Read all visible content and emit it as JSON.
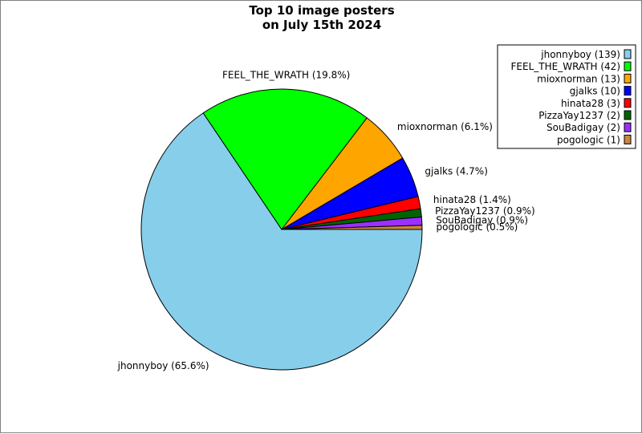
{
  "chart_data": {
    "type": "pie",
    "title_lines": [
      "Top 10 image posters",
      "on July 15th 2024"
    ],
    "slices": [
      {
        "name": "jhonnyboy",
        "value": 139,
        "percent_label": "jhonnyboy (65.6%)",
        "legend_label": "jhonnyboy (139)",
        "color": "#87CEEB"
      },
      {
        "name": "FEEL_THE_WRATH",
        "value": 42,
        "percent_label": "FEEL_THE_WRATH (19.8%)",
        "legend_label": "FEEL_THE_WRATH (42)",
        "color": "#00FF00"
      },
      {
        "name": "mioxnorman",
        "value": 13,
        "percent_label": "mioxnorman (6.1%)",
        "legend_label": "mioxnorman (13)",
        "color": "#FFA500"
      },
      {
        "name": "gjalks",
        "value": 10,
        "percent_label": "gjalks (4.7%)",
        "legend_label": "gjalks (10)",
        "color": "#0000FF"
      },
      {
        "name": "hinata28",
        "value": 3,
        "percent_label": "hinata28 (1.4%)",
        "legend_label": "hinata28 (3)",
        "color": "#FF0000"
      },
      {
        "name": "PizzaYay1237",
        "value": 2,
        "percent_label": "PizzaYay1237 (0.9%)",
        "legend_label": "PizzaYay1237 (2)",
        "color": "#006400"
      },
      {
        "name": "SouBadigay",
        "value": 2,
        "percent_label": "SouBadigay (0.9%)",
        "legend_label": "SouBadigay (2)",
        "color": "#9B30FF"
      },
      {
        "name": "pogologic",
        "value": 1,
        "percent_label": "pogologic (0.5%)",
        "legend_label": "pogologic (1)",
        "color": "#CD853F"
      }
    ],
    "start_angle": "0 degrees (3 o'clock)",
    "direction": "clockwise",
    "legend_position": "top-right"
  }
}
